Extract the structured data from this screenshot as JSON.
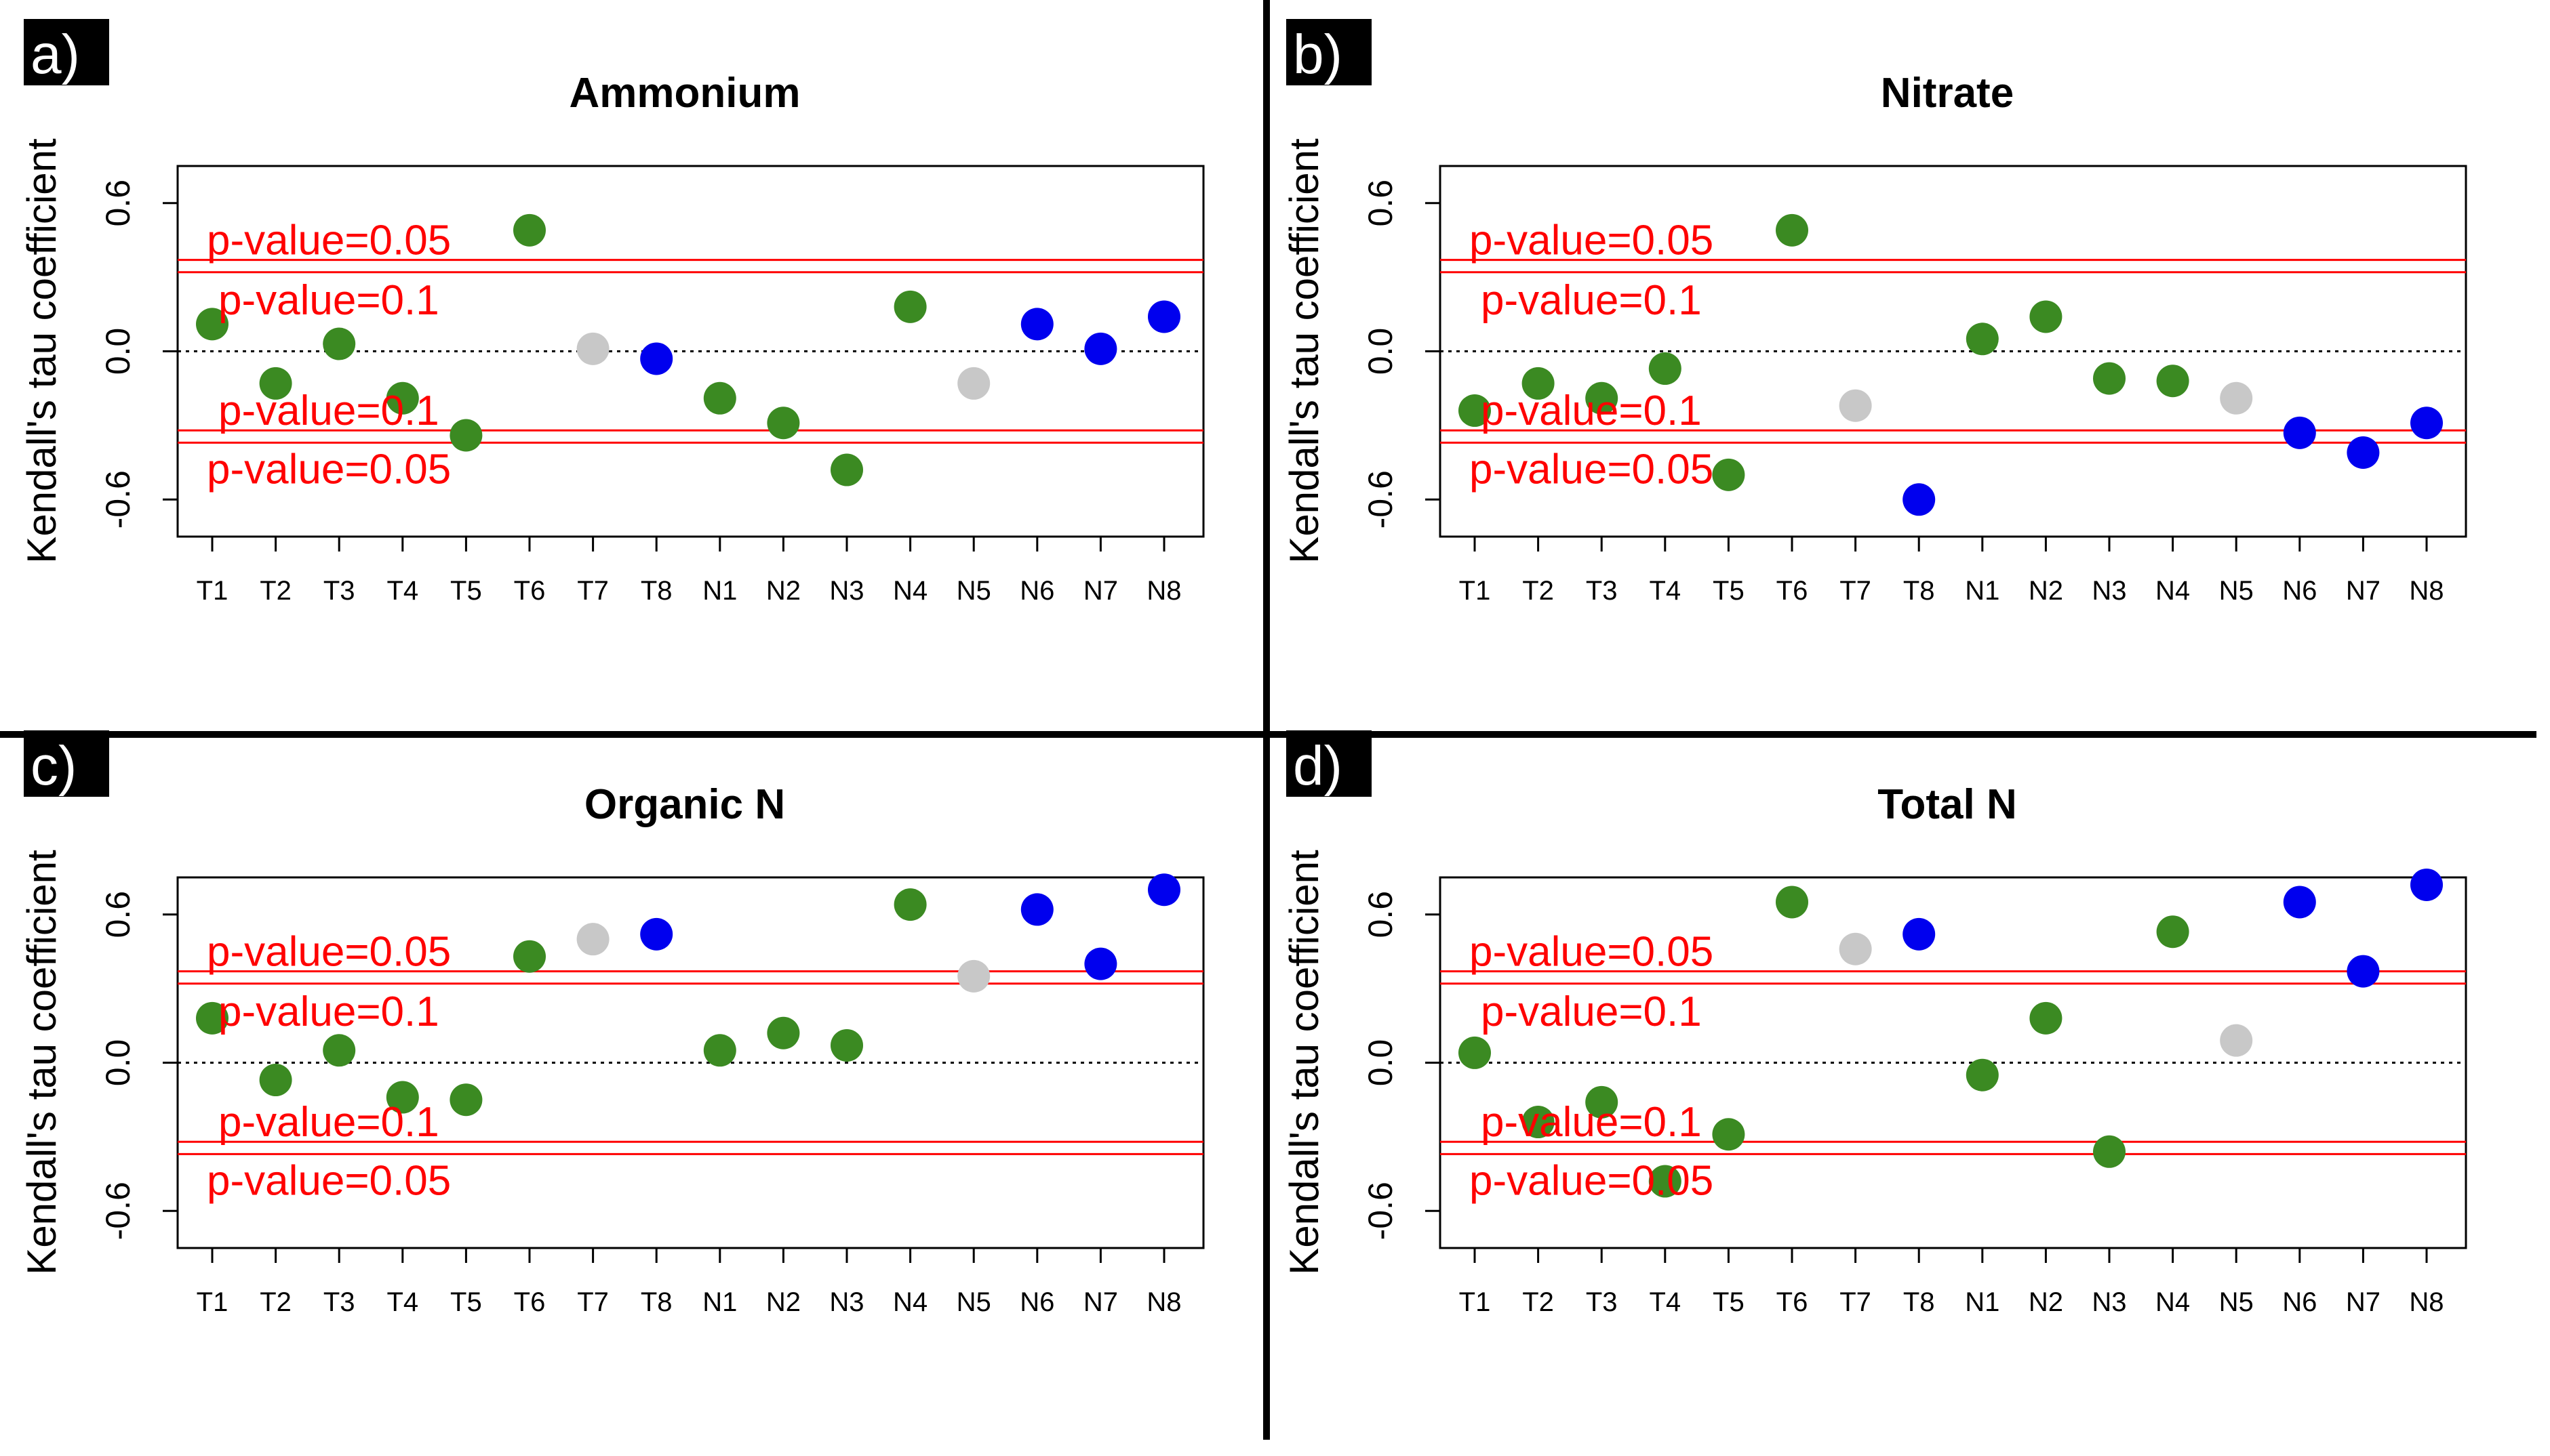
{
  "figure": {
    "panels": [
      {
        "label": "a)",
        "title": "Ammonium"
      },
      {
        "label": "b)",
        "title": "Nitrate"
      },
      {
        "label": "c)",
        "title": "Organic N"
      },
      {
        "label": "d)",
        "title": "Total N"
      }
    ]
  },
  "chart_data": [
    {
      "type": "scatter",
      "panel_label": "a)",
      "title": "Ammonium",
      "ylabel": "Kendall's tau coefficient",
      "categories": [
        "T1",
        "T2",
        "T3",
        "T4",
        "T5",
        "T6",
        "T7",
        "T8",
        "N1",
        "N2",
        "N3",
        "N4",
        "N5",
        "N6",
        "N7",
        "N8"
      ],
      "values": [
        0.11,
        -0.13,
        0.03,
        -0.19,
        -0.34,
        0.49,
        0.01,
        -0.03,
        -0.19,
        -0.29,
        -0.48,
        0.18,
        -0.13,
        0.11,
        0.01,
        0.14
      ],
      "point_colors": [
        "#3b8a22",
        "#3b8a22",
        "#3b8a22",
        "#3b8a22",
        "#3b8a22",
        "#3b8a22",
        "#c8c8c8",
        "#0000ee",
        "#3b8a22",
        "#3b8a22",
        "#3b8a22",
        "#3b8a22",
        "#c8c8c8",
        "#0000ee",
        "#0000ee",
        "#0000ee"
      ],
      "yticks": [
        -0.6,
        0.0,
        0.6
      ],
      "ytick_labels": [
        "-0.6",
        "0.0",
        "0.6"
      ],
      "ylim": [
        -0.75,
        0.75
      ],
      "reference_lines": [
        {
          "label": "p-value=0.05",
          "y": 0.37
        },
        {
          "label": "p-value=0.1",
          "y": 0.32
        },
        {
          "label": "p-value=0.1",
          "y": -0.32
        },
        {
          "label": "p-value=0.05",
          "y": -0.37
        }
      ],
      "zero_line": 0.0
    },
    {
      "type": "scatter",
      "panel_label": "b)",
      "title": "Nitrate",
      "ylabel": "Kendall's tau coefficient",
      "categories": [
        "T1",
        "T2",
        "T3",
        "T4",
        "T5",
        "T6",
        "T7",
        "T8",
        "N1",
        "N2",
        "N3",
        "N4",
        "N5",
        "N6",
        "N7",
        "N8"
      ],
      "values": [
        -0.24,
        -0.13,
        -0.19,
        -0.07,
        -0.5,
        0.49,
        -0.22,
        -0.6,
        0.05,
        0.14,
        -0.11,
        -0.12,
        -0.19,
        -0.33,
        -0.41,
        -0.29
      ],
      "point_colors": [
        "#3b8a22",
        "#3b8a22",
        "#3b8a22",
        "#3b8a22",
        "#3b8a22",
        "#3b8a22",
        "#c8c8c8",
        "#0000ee",
        "#3b8a22",
        "#3b8a22",
        "#3b8a22",
        "#3b8a22",
        "#c8c8c8",
        "#0000ee",
        "#0000ee",
        "#0000ee"
      ],
      "yticks": [
        -0.6,
        0.0,
        0.6
      ],
      "ytick_labels": [
        "-0.6",
        "0.0",
        "0.6"
      ],
      "ylim": [
        -0.75,
        0.75
      ],
      "reference_lines": [
        {
          "label": "p-value=0.05",
          "y": 0.37
        },
        {
          "label": "p-value=0.1",
          "y": 0.32
        },
        {
          "label": "p-value=0.1",
          "y": -0.32
        },
        {
          "label": "p-value=0.05",
          "y": -0.37
        }
      ],
      "zero_line": 0.0
    },
    {
      "type": "scatter",
      "panel_label": "c)",
      "title": "Organic N",
      "ylabel": "Kendall's tau coefficient",
      "categories": [
        "T1",
        "T2",
        "T3",
        "T4",
        "T5",
        "T6",
        "T7",
        "T8",
        "N1",
        "N2",
        "N3",
        "N4",
        "N5",
        "N6",
        "N7",
        "N8"
      ],
      "values": [
        0.18,
        -0.07,
        0.05,
        -0.14,
        -0.15,
        0.43,
        0.5,
        0.52,
        0.05,
        0.12,
        0.07,
        0.64,
        0.35,
        0.62,
        0.4,
        0.7
      ],
      "point_colors": [
        "#3b8a22",
        "#3b8a22",
        "#3b8a22",
        "#3b8a22",
        "#3b8a22",
        "#3b8a22",
        "#c8c8c8",
        "#0000ee",
        "#3b8a22",
        "#3b8a22",
        "#3b8a22",
        "#3b8a22",
        "#c8c8c8",
        "#0000ee",
        "#0000ee",
        "#0000ee"
      ],
      "yticks": [
        -0.6,
        0.0,
        0.6
      ],
      "ytick_labels": [
        "-0.6",
        "0.0",
        "0.6"
      ],
      "ylim": [
        -0.75,
        0.75
      ],
      "reference_lines": [
        {
          "label": "p-value=0.05",
          "y": 0.37
        },
        {
          "label": "p-value=0.1",
          "y": 0.32
        },
        {
          "label": "p-value=0.1",
          "y": -0.32
        },
        {
          "label": "p-value=0.05",
          "y": -0.37
        }
      ],
      "zero_line": 0.0
    },
    {
      "type": "scatter",
      "panel_label": "d)",
      "title": "Total N",
      "ylabel": "Kendall's tau coefficient",
      "categories": [
        "T1",
        "T2",
        "T3",
        "T4",
        "T5",
        "T6",
        "T7",
        "T8",
        "N1",
        "N2",
        "N3",
        "N4",
        "N5",
        "N6",
        "N7",
        "N8"
      ],
      "values": [
        0.04,
        -0.24,
        -0.16,
        -0.48,
        -0.29,
        0.65,
        0.46,
        0.52,
        -0.05,
        0.18,
        -0.36,
        0.53,
        0.09,
        0.65,
        0.37,
        0.72
      ],
      "point_colors": [
        "#3b8a22",
        "#3b8a22",
        "#3b8a22",
        "#3b8a22",
        "#3b8a22",
        "#3b8a22",
        "#c8c8c8",
        "#0000ee",
        "#3b8a22",
        "#3b8a22",
        "#3b8a22",
        "#3b8a22",
        "#c8c8c8",
        "#0000ee",
        "#0000ee",
        "#0000ee"
      ],
      "yticks": [
        -0.6,
        0.0,
        0.6
      ],
      "ytick_labels": [
        "-0.6",
        "0.0",
        "0.6"
      ],
      "ylim": [
        -0.75,
        0.75
      ],
      "reference_lines": [
        {
          "label": "p-value=0.05",
          "y": 0.37
        },
        {
          "label": "p-value=0.1",
          "y": 0.32
        },
        {
          "label": "p-value=0.1",
          "y": -0.32
        },
        {
          "label": "p-value=0.05",
          "y": -0.37
        }
      ],
      "zero_line": 0.0
    }
  ]
}
